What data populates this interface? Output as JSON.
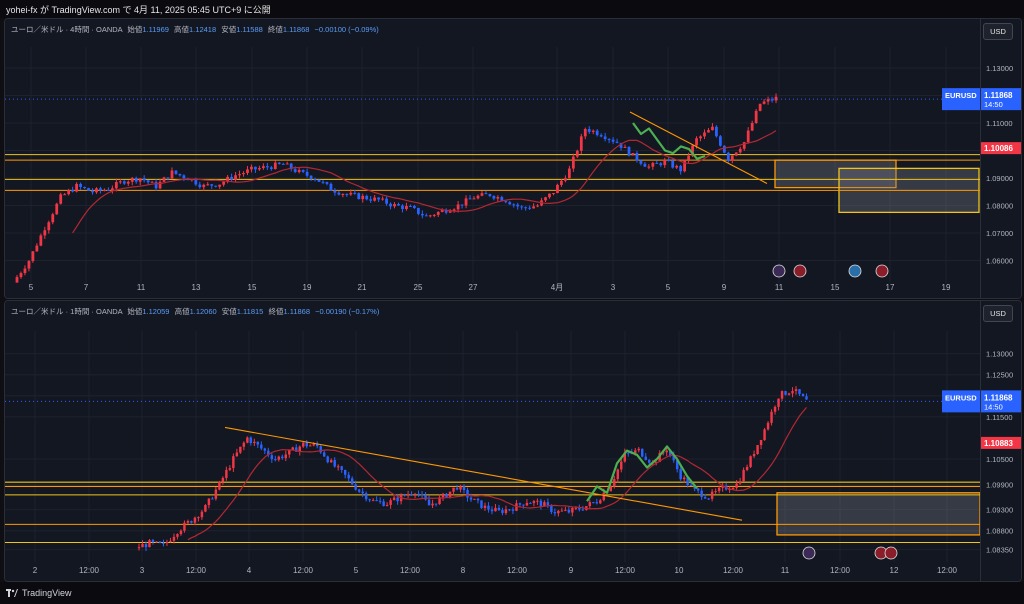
{
  "header": {
    "text": "yohei-fx が TradingView.com で 4月 11, 2025 05:45 UTC+9 に公開"
  },
  "footer": {
    "brand": "TradingView"
  },
  "colors": {
    "up": "#f23645",
    "down": "#2962ff",
    "ma": "#b22833",
    "zone_line": "#f0c419",
    "zone_box": "#ff9800",
    "trend": "#ff9800",
    "pattern": "#4caf50",
    "bg": "#131722"
  },
  "panels": [
    {
      "symbol": "ユーロ／米ドル · 4時間 · OANDA",
      "o_label": "始値",
      "o": "1.11969",
      "h_label": "高値",
      "h": "1.12418",
      "l_label": "安値",
      "l": "1.11588",
      "c_label": "終値",
      "c": "1.11868",
      "change": "−0.00100 (−0.09%)",
      "currency": "USD",
      "price_tag": {
        "symbol": "EURUSD",
        "value": "1.11868",
        "time": "14:50"
      },
      "level_tag": "1.10086",
      "y_ticks": [
        "1.13000",
        "1.12000",
        "1.11000",
        "1.10000",
        "1.09000",
        "1.08000",
        "1.07000",
        "1.06000"
      ],
      "x_ticks": [
        "5",
        "7",
        "11",
        "13",
        "15",
        "19",
        "21",
        "25",
        "27",
        "4月",
        "3",
        "5",
        "9",
        "11",
        "15",
        "17",
        "19"
      ]
    },
    {
      "symbol": "ユーロ／米ドル · 1時間 · OANDA",
      "o_label": "始値",
      "o": "1.12059",
      "h_label": "高値",
      "h": "1.12060",
      "l_label": "安値",
      "l": "1.11815",
      "c_label": "終値",
      "c": "1.11868",
      "change": "−0.00190 (−0.17%)",
      "currency": "USD",
      "price_tag": {
        "symbol": "EURUSD",
        "value": "1.11868",
        "time": "14:50"
      },
      "level_tag": "1.10883",
      "y_ticks": [
        "1.13000",
        "1.12500",
        "1.12000",
        "1.11500",
        "1.10500",
        "1.09900",
        "1.09300",
        "1.08800",
        "1.08350"
      ],
      "x_ticks": [
        "2",
        "12:00",
        "3",
        "12:00",
        "4",
        "12:00",
        "5",
        "12:00",
        "8",
        "12:00",
        "9",
        "12:00",
        "10",
        "12:00",
        "11",
        "12:00",
        "12",
        "12:00"
      ]
    }
  ],
  "chart_data": [
    {
      "type": "candlestick",
      "title": "ユーロ／米ドル · 4時間 · OANDA",
      "ylim": [
        1.054,
        1.134
      ],
      "x_labels": [
        "5",
        "7",
        "11",
        "13",
        "15",
        "19",
        "21",
        "25",
        "27",
        "4月",
        "3",
        "5",
        "9",
        "11",
        "15",
        "17",
        "19"
      ],
      "close_path": [
        1.052,
        1.06,
        1.072,
        1.083,
        1.087,
        1.085,
        1.086,
        1.089,
        1.09,
        1.087,
        1.092,
        1.09,
        1.087,
        1.088,
        1.091,
        1.093,
        1.094,
        1.095,
        1.092,
        1.09,
        1.086,
        1.084,
        1.083,
        1.082,
        1.08,
        1.079,
        1.076,
        1.078,
        1.08,
        1.083,
        1.084,
        1.082,
        1.079,
        1.08,
        1.085,
        1.093,
        1.108,
        1.106,
        1.103,
        1.098,
        1.094,
        1.096,
        1.093,
        1.104,
        1.108,
        1.097,
        1.103,
        1.117,
        1.119
      ],
      "resistance_lines": [
        1.0985,
        1.0965,
        1.0895,
        1.0855
      ],
      "zones": [
        [
          1.0865,
          1.0965
        ],
        [
          1.0775,
          1.0935
        ]
      ],
      "ma": "moving average (red)"
    },
    {
      "type": "candlestick",
      "title": "ユーロ／米ドル · 1時間 · OANDA",
      "ylim": [
        1.082,
        1.133
      ],
      "x_labels": [
        "2",
        "12:00",
        "3",
        "12:00",
        "4",
        "12:00",
        "5",
        "12:00",
        "8",
        "12:00",
        "9",
        "12:00",
        "10",
        "12:00",
        "11",
        "12:00",
        "12",
        "12:00"
      ],
      "close_path": [
        1.084,
        1.085,
        1.0845,
        1.088,
        1.0905,
        1.0935,
        1.099,
        1.105,
        1.11,
        1.1075,
        1.105,
        1.1065,
        1.1085,
        1.108,
        1.104,
        1.101,
        1.0975,
        1.095,
        1.0945,
        1.096,
        1.0975,
        1.094,
        1.096,
        1.0985,
        1.0955,
        1.0935,
        1.0925,
        1.0935,
        1.095,
        1.0945,
        1.0925,
        1.0925,
        1.0935,
        1.095,
        1.099,
        1.106,
        1.107,
        1.104,
        1.1075,
        1.101,
        1.0975,
        1.096,
        1.098,
        1.099,
        1.105,
        1.112,
        1.12,
        1.1215,
        1.1187
      ],
      "resistance_lines": [
        1.0995,
        1.0985,
        1.0965,
        1.0895,
        1.0852
      ],
      "zones": [
        [
          1.087,
          1.097
        ]
      ],
      "ma": "moving average (red)"
    }
  ]
}
